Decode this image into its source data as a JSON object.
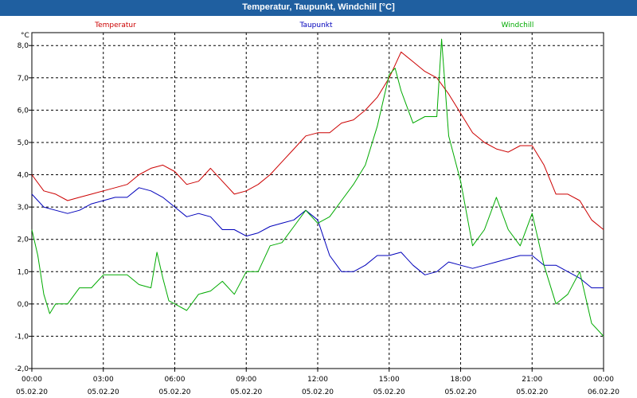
{
  "window": {
    "title": "Temperatur, Taupunkt, Windchill [°C]"
  },
  "colors": {
    "temperature": "#cc0000",
    "dewpoint": "#0000bb",
    "windchill": "#00aa00",
    "grid": "#000000",
    "title_bg": "#1f5fa0"
  },
  "chart_data": {
    "type": "line",
    "title": "Temperatur, Taupunkt, Windchill [°C]",
    "ylabel": "°C",
    "xlabel": "",
    "ylim": [
      -2.0,
      8.4
    ],
    "xlim": [
      0,
      24
    ],
    "grid": true,
    "yticks": [
      {
        "value": 8,
        "label": "8,0"
      },
      {
        "value": 7,
        "label": "7,0"
      },
      {
        "value": 6,
        "label": "6,0"
      },
      {
        "value": 5,
        "label": "5,0"
      },
      {
        "value": 4,
        "label": "4,0"
      },
      {
        "value": 3,
        "label": "3,0"
      },
      {
        "value": 2,
        "label": "2,0"
      },
      {
        "value": 1,
        "label": "1,0"
      },
      {
        "value": 0,
        "label": "0,0"
      },
      {
        "value": -1,
        "label": "-1,0"
      },
      {
        "value": -2,
        "label": "-2,0"
      }
    ],
    "xticks": [
      {
        "value": 0,
        "time": "00:00",
        "date": "05.02.20"
      },
      {
        "value": 3,
        "time": "03:00",
        "date": "05.02.20"
      },
      {
        "value": 6,
        "time": "06:00",
        "date": "05.02.20"
      },
      {
        "value": 9,
        "time": "09:00",
        "date": "05.02.20"
      },
      {
        "value": 12,
        "time": "12:00",
        "date": "05.02.20"
      },
      {
        "value": 15,
        "time": "15:00",
        "date": "05.02.20"
      },
      {
        "value": 18,
        "time": "18:00",
        "date": "05.02.20"
      },
      {
        "value": 21,
        "time": "21:00",
        "date": "05.02.20"
      },
      {
        "value": 24,
        "time": "00:00",
        "date": "06.02.20"
      }
    ],
    "series": [
      {
        "name": "Temperatur",
        "color": "#cc0000",
        "x": [
          0,
          0.5,
          1,
          1.5,
          2,
          2.5,
          3,
          3.5,
          4,
          4.5,
          5,
          5.5,
          6,
          6.5,
          7,
          7.5,
          8,
          8.5,
          9,
          9.5,
          10,
          10.5,
          11,
          11.5,
          12,
          12.5,
          13,
          13.5,
          14,
          14.5,
          15,
          15.5,
          16,
          16.5,
          17,
          17.5,
          18,
          18.5,
          19,
          19.5,
          20,
          20.5,
          21,
          21.5,
          22,
          22.5,
          23,
          23.5,
          24
        ],
        "values": [
          4.0,
          3.5,
          3.4,
          3.2,
          3.3,
          3.4,
          3.5,
          3.6,
          3.7,
          4.0,
          4.2,
          4.3,
          4.1,
          3.7,
          3.8,
          4.2,
          3.8,
          3.4,
          3.5,
          3.7,
          4.0,
          4.4,
          4.8,
          5.2,
          5.3,
          5.3,
          5.6,
          5.7,
          6.0,
          6.4,
          7.0,
          7.8,
          7.5,
          7.2,
          7.0,
          6.5,
          5.9,
          5.3,
          5.0,
          4.8,
          4.7,
          4.9,
          4.9,
          4.3,
          3.4,
          3.4,
          3.2,
          2.6,
          2.3
        ]
      },
      {
        "name": "Taupunkt",
        "color": "#0000bb",
        "x": [
          0,
          0.5,
          1,
          1.5,
          2,
          2.5,
          3,
          3.5,
          4,
          4.5,
          5,
          5.5,
          6,
          6.5,
          7,
          7.5,
          8,
          8.5,
          9,
          9.5,
          10,
          10.5,
          11,
          11.5,
          12,
          12.5,
          13,
          13.5,
          14,
          14.5,
          15,
          15.5,
          16,
          16.5,
          17,
          17.5,
          18,
          18.5,
          19,
          19.5,
          20,
          20.5,
          21,
          21.5,
          22,
          22.5,
          23,
          23.5,
          24
        ],
        "values": [
          3.4,
          3.0,
          2.9,
          2.8,
          2.9,
          3.1,
          3.2,
          3.3,
          3.3,
          3.6,
          3.5,
          3.3,
          3.0,
          2.7,
          2.8,
          2.7,
          2.3,
          2.3,
          2.1,
          2.2,
          2.4,
          2.5,
          2.6,
          2.9,
          2.6,
          1.5,
          1.0,
          1.0,
          1.2,
          1.5,
          1.5,
          1.6,
          1.2,
          0.9,
          1.0,
          1.3,
          1.2,
          1.1,
          1.2,
          1.3,
          1.4,
          1.5,
          1.5,
          1.2,
          1.2,
          1.0,
          0.8,
          0.5,
          0.5
        ]
      },
      {
        "name": "Windchill",
        "color": "#00aa00",
        "x": [
          0,
          0.25,
          0.5,
          0.75,
          1,
          1.5,
          2,
          2.5,
          3,
          3.5,
          4,
          4.5,
          5,
          5.25,
          5.5,
          5.75,
          6,
          6.5,
          7,
          7.5,
          8,
          8.5,
          9,
          9.5,
          10,
          10.5,
          11,
          11.5,
          12,
          12.5,
          13,
          13.5,
          14,
          14.5,
          15,
          15.25,
          15.5,
          16,
          16.5,
          17,
          17.2,
          17.5,
          18,
          18.5,
          19,
          19.5,
          20,
          20.5,
          21,
          21.5,
          22,
          22.5,
          23,
          23.5,
          24
        ],
        "values": [
          2.3,
          1.5,
          0.3,
          -0.3,
          0.0,
          0.0,
          0.5,
          0.5,
          0.9,
          0.9,
          0.9,
          0.6,
          0.5,
          1.6,
          0.8,
          0.1,
          0.0,
          -0.2,
          0.3,
          0.4,
          0.7,
          0.3,
          1.0,
          1.0,
          1.8,
          1.9,
          2.4,
          2.9,
          2.5,
          2.7,
          3.2,
          3.7,
          4.3,
          5.5,
          7.1,
          7.3,
          6.6,
          5.6,
          5.8,
          5.8,
          8.2,
          5.2,
          3.8,
          1.8,
          2.3,
          3.3,
          2.3,
          1.8,
          2.8,
          1.2,
          0.0,
          0.3,
          1.0,
          -0.6,
          -1.0
        ]
      }
    ]
  }
}
